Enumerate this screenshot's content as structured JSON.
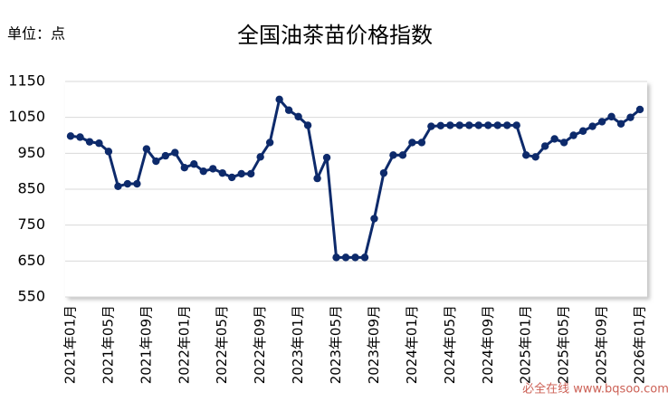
{
  "chart_data": {
    "type": "line",
    "title": "全国油茶苗价格指数",
    "unit_label": "单位：点",
    "watermark": "必全在线 www.bqsoo.com",
    "categories": [
      "2021年01月",
      null,
      null,
      null,
      "2021年05月",
      null,
      null,
      null,
      "2021年09月",
      null,
      null,
      null,
      "2022年01月",
      null,
      null,
      null,
      "2022年05月",
      null,
      null,
      null,
      "2022年09月",
      null,
      null,
      null,
      "2023年01月",
      null,
      null,
      null,
      "2023年05月",
      null,
      null,
      null,
      "2023年09月",
      null,
      null,
      null,
      "2024年01月",
      null,
      null,
      null,
      "2024年05月",
      null,
      null,
      null,
      "2024年09月",
      null,
      null,
      null,
      "2025年01月",
      null,
      null,
      null,
      "2025年05月",
      null,
      null,
      null,
      "2025年09月",
      null,
      null,
      null,
      "2026年01月"
    ],
    "series": [
      {
        "name": "全国油茶苗价格指数",
        "color": "#0d2a6b",
        "values": [
          998,
          995,
          982,
          978,
          955,
          858,
          865,
          865,
          962,
          928,
          943,
          952,
          910,
          920,
          900,
          907,
          895,
          883,
          893,
          893,
          940,
          980,
          1100,
          1070,
          1052,
          1028,
          880,
          938,
          660,
          660,
          660,
          660,
          768,
          895,
          945,
          945,
          980,
          980,
          1025,
          1027,
          1028,
          1028,
          1028,
          1028,
          1028,
          1028,
          1028,
          1028,
          945,
          940,
          970,
          990,
          980,
          1000,
          1012,
          1025,
          1038,
          1052,
          1032,
          1050,
          1072
        ]
      }
    ],
    "ylim": [
      550,
      1150
    ],
    "yticks": [
      550,
      650,
      750,
      850,
      950,
      1050,
      1150
    ],
    "grid": true
  }
}
